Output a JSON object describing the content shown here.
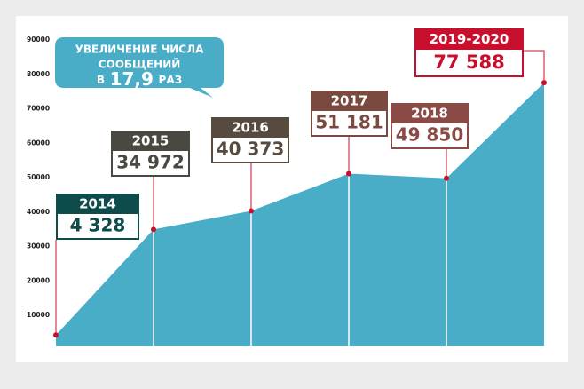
{
  "chart_data": {
    "type": "area",
    "annotation": {
      "lines": [
        "УВЕЛИЧЕНИЕ ЧИСЛА",
        "СООБЩЕНИЙ"
      ],
      "prefix": "В",
      "highlight": "17,9",
      "suffix": "РАЗ"
    },
    "categories": [
      "2014",
      "2015",
      "2016",
      "2017",
      "2018",
      "2019-2020"
    ],
    "values": [
      4328,
      34972,
      40373,
      51181,
      49850,
      77588
    ],
    "value_labels": [
      "4 328",
      "34 972",
      "40 373",
      "51 181",
      "49 850",
      "77 588"
    ],
    "color": "#4aadc8",
    "point_color": "#c8102e",
    "label_colors": [
      "#0e4b4b",
      "#4a4841",
      "#574a3f",
      "#7a4a40",
      "#8a4b47",
      "#c8102e"
    ],
    "ylim": [
      0,
      90000
    ],
    "yticks": [
      10000,
      20000,
      30000,
      40000,
      50000,
      60000,
      70000,
      80000,
      90000
    ]
  }
}
